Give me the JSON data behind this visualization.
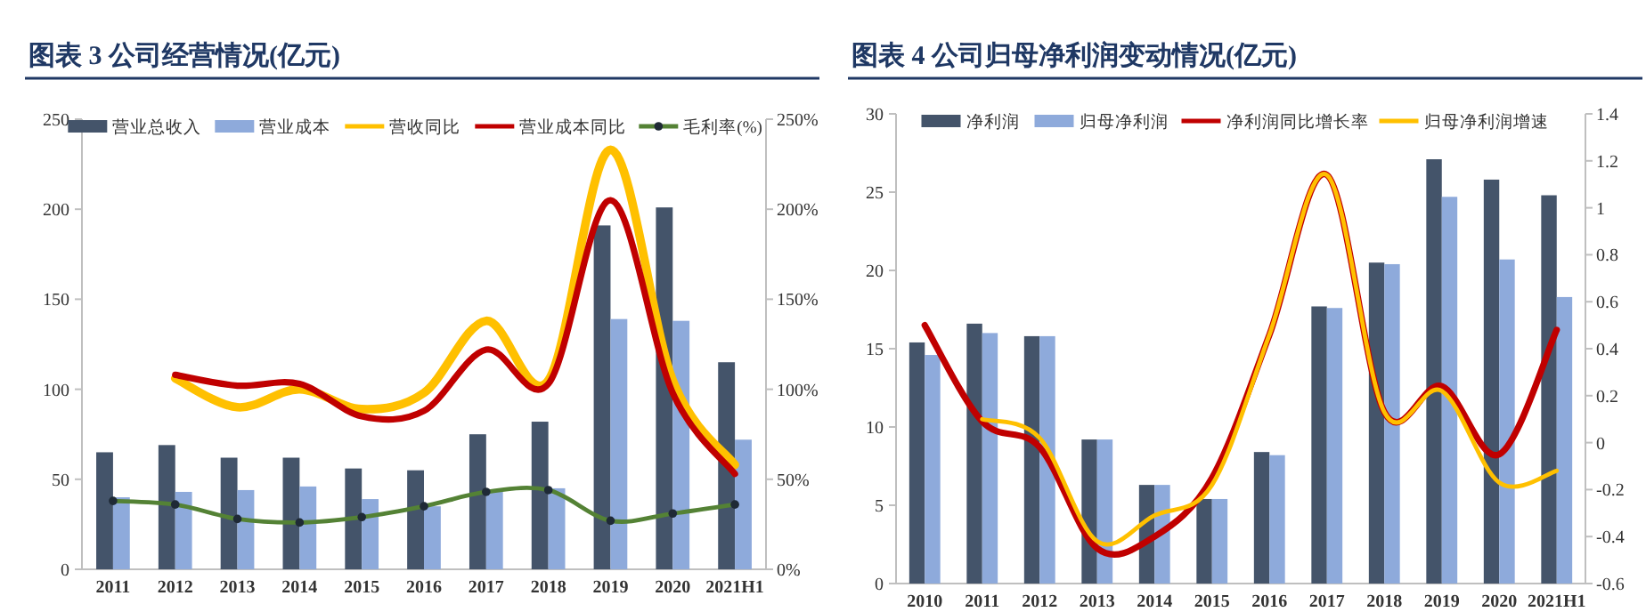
{
  "chart_data": [
    {
      "type": "bar",
      "title": "图表 3 公司经营情况(亿元)",
      "categories": [
        "2011",
        "2012",
        "2013",
        "2014",
        "2015",
        "2016",
        "2017",
        "2018",
        "2019",
        "2020",
        "2021H1"
      ],
      "ylim": [
        0,
        250
      ],
      "yticks": [
        0,
        50,
        100,
        150,
        200,
        250
      ],
      "y2lim": [
        0,
        250
      ],
      "y2ticks": [
        {
          "value": 0,
          "label": "0%"
        },
        {
          "value": 50,
          "label": "50%"
        },
        {
          "value": 100,
          "label": "100%"
        },
        {
          "value": 150,
          "label": "150%"
        },
        {
          "value": 200,
          "label": "200%"
        },
        {
          "value": 250,
          "label": "250%"
        }
      ],
      "legend": "top",
      "series": [
        {
          "name": "营业总收入",
          "type": "bar",
          "color": "#44546a",
          "values": [
            65,
            69,
            62,
            62,
            56,
            55,
            75,
            82,
            191,
            201,
            115
          ]
        },
        {
          "name": "营业成本",
          "type": "bar",
          "color": "#8eaadb",
          "values": [
            40,
            43,
            44,
            46,
            39,
            35,
            43,
            45,
            139,
            138,
            72
          ]
        },
        {
          "name": "营收同比",
          "type": "line",
          "axis": "y2",
          "color": "#ffc000",
          "values": [
            null,
            106,
            90,
            100,
            89,
            98,
            138,
            105,
            233,
            105,
            58
          ]
        },
        {
          "name": "营业成本同比",
          "type": "line",
          "axis": "y2",
          "color": "#c00000",
          "values": [
            null,
            108,
            102,
            103,
            85,
            88,
            122,
            103,
            205,
            98,
            53
          ]
        },
        {
          "name": "毛利率(%)",
          "type": "line",
          "axis": "y2",
          "color": "#548235",
          "marker": "circle",
          "values": [
            38,
            36,
            28,
            26,
            29,
            35,
            43,
            44,
            27,
            31,
            36
          ]
        }
      ]
    },
    {
      "type": "bar",
      "title": "图表 4 公司归母净利润变动情况(亿元)",
      "categories": [
        "2010",
        "2011",
        "2012",
        "2013",
        "2014",
        "2015",
        "2016",
        "2017",
        "2018",
        "2019",
        "2020",
        "2021H1"
      ],
      "ylim": [
        0,
        30
      ],
      "yticks": [
        0,
        5,
        10,
        15,
        20,
        25,
        30
      ],
      "y2lim": [
        -0.6,
        1.4
      ],
      "y2ticks": [
        -0.6,
        -0.4,
        -0.2,
        0,
        0.2,
        0.4,
        0.6,
        0.8,
        1,
        1.2,
        1.4
      ],
      "legend": "top",
      "series": [
        {
          "name": "净利润",
          "type": "bar",
          "color": "#44546a",
          "values": [
            15.4,
            16.6,
            15.8,
            9.2,
            6.3,
            5.4,
            8.4,
            17.7,
            20.5,
            27.1,
            25.8,
            24.8
          ]
        },
        {
          "name": "归母净利润",
          "type": "bar",
          "color": "#8eaadb",
          "values": [
            14.6,
            16.0,
            15.8,
            9.2,
            6.3,
            5.4,
            8.2,
            17.6,
            20.4,
            24.7,
            20.7,
            18.3
          ]
        },
        {
          "name": "净利润同比增长率",
          "type": "line",
          "axis": "y2",
          "color": "#c00000",
          "values": [
            0.5,
            0.09,
            -0.02,
            -0.45,
            -0.4,
            -0.15,
            0.46,
            1.14,
            0.13,
            0.24,
            -0.05,
            0.48
          ]
        },
        {
          "name": "归母净利润增速",
          "type": "line",
          "axis": "y2",
          "color": "#ffc000",
          "values": [
            null,
            0.1,
            0.02,
            -0.42,
            -0.31,
            -0.18,
            0.46,
            1.14,
            0.13,
            0.22,
            -0.17,
            -0.12
          ]
        }
      ]
    }
  ]
}
